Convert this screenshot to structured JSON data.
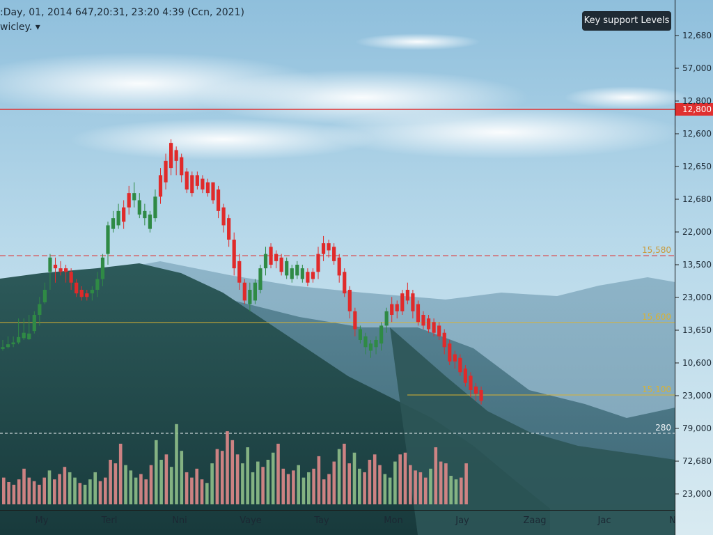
{
  "header": {
    "info_line": ":Day, 01, 2014 647,20:31, 23:20 4:39 (Ccn, 2021)",
    "symbol_line": "wicley. ▾"
  },
  "legend": {
    "label": "Key support Levels"
  },
  "colors": {
    "up": "#2f8a45",
    "down": "#e02a2a",
    "resistance": "#e03030",
    "support": "#d9b232",
    "volume_up": "#8fbf8a",
    "volume_down": "#e08a8a"
  },
  "chart_data": {
    "type": "candlestick",
    "y_axis_labels": [
      "12,680",
      "57,000",
      "12,800",
      "12,600",
      "12,650",
      "12,680",
      "22,000",
      "13,500",
      "23,000",
      "13,650",
      "10,600",
      "23,000",
      "79,000",
      "72,680",
      "23,000"
    ],
    "x_axis_labels": [
      "My",
      "Terl",
      "Nni",
      "Vaye",
      "Tay",
      "Mon",
      "Jay",
      "Zaag",
      "Jac",
      "N"
    ],
    "levels": [
      {
        "label": "12,800",
        "value": 12.8,
        "style": "solid-red",
        "price_tag": true
      },
      {
        "label": "15,580",
        "value": 15.58,
        "style": "dashed-red"
      },
      {
        "label": "15,600",
        "value": 15.6,
        "style": "solid-gold"
      },
      {
        "label": "15,100",
        "value": 15.1,
        "style": "solid-gold-partial"
      },
      {
        "label": "280",
        "value": 0.28,
        "style": "dashed-white"
      }
    ],
    "ohlc": [
      [
        0.11,
        0.115,
        0.12,
        0.14
      ],
      [
        0.116,
        0.12,
        0.128,
        0.15
      ],
      [
        0.12,
        0.128,
        0.133,
        0.15
      ],
      [
        0.128,
        0.133,
        0.148,
        0.2
      ],
      [
        0.14,
        0.145,
        0.16,
        0.2
      ],
      [
        0.14,
        0.142,
        0.158,
        0.21
      ],
      [
        0.158,
        0.165,
        0.21,
        0.22
      ],
      [
        0.18,
        0.21,
        0.24,
        0.26
      ],
      [
        0.24,
        0.245,
        0.28,
        0.3
      ],
      [
        0.28,
        0.33,
        0.37,
        0.38
      ],
      [
        0.3,
        0.34,
        0.35,
        0.37
      ],
      [
        0.32,
        0.33,
        0.34,
        0.36
      ],
      [
        0.3,
        0.33,
        0.34,
        0.35
      ],
      [
        0.28,
        0.3,
        0.33,
        0.34
      ],
      [
        0.26,
        0.27,
        0.3,
        0.31
      ],
      [
        0.25,
        0.26,
        0.28,
        0.29
      ],
      [
        0.25,
        0.26,
        0.27,
        0.28
      ],
      [
        0.25,
        0.27,
        0.28,
        0.29
      ],
      [
        0.26,
        0.28,
        0.31,
        0.33
      ],
      [
        0.29,
        0.31,
        0.37,
        0.38
      ],
      [
        0.35,
        0.38,
        0.46,
        0.47
      ],
      [
        0.44,
        0.45,
        0.48,
        0.5
      ],
      [
        0.45,
        0.46,
        0.5,
        0.52
      ],
      [
        0.45,
        0.47,
        0.51,
        0.53
      ],
      [
        0.49,
        0.51,
        0.55,
        0.57
      ],
      [
        0.51,
        0.53,
        0.55,
        0.58
      ],
      [
        0.48,
        0.49,
        0.53,
        0.55
      ],
      [
        0.46,
        0.48,
        0.5,
        0.52
      ],
      [
        0.44,
        0.45,
        0.49,
        0.5
      ],
      [
        0.47,
        0.48,
        0.54,
        0.56
      ],
      [
        0.52,
        0.54,
        0.6,
        0.62
      ],
      [
        0.56,
        0.58,
        0.64,
        0.66
      ],
      [
        0.6,
        0.62,
        0.69,
        0.7
      ],
      [
        0.6,
        0.64,
        0.67,
        0.68
      ],
      [
        0.58,
        0.6,
        0.65,
        0.66
      ],
      [
        0.55,
        0.56,
        0.61,
        0.62
      ],
      [
        0.54,
        0.55,
        0.6,
        0.61
      ],
      [
        0.56,
        0.57,
        0.6,
        0.61
      ],
      [
        0.55,
        0.56,
        0.59,
        0.6
      ],
      [
        0.54,
        0.55,
        0.58,
        0.59
      ],
      [
        0.52,
        0.53,
        0.58,
        0.58
      ],
      [
        0.48,
        0.5,
        0.56,
        0.57
      ],
      [
        0.44,
        0.46,
        0.51,
        0.52
      ],
      [
        0.4,
        0.42,
        0.48,
        0.49
      ],
      [
        0.32,
        0.34,
        0.42,
        0.44
      ],
      [
        0.28,
        0.3,
        0.36,
        0.38
      ],
      [
        0.24,
        0.25,
        0.3,
        0.31
      ],
      [
        0.22,
        0.24,
        0.28,
        0.3
      ],
      [
        0.24,
        0.25,
        0.3,
        0.31
      ],
      [
        0.27,
        0.28,
        0.34,
        0.35
      ],
      [
        0.32,
        0.34,
        0.38,
        0.4
      ],
      [
        0.34,
        0.35,
        0.4,
        0.41
      ],
      [
        0.34,
        0.36,
        0.38,
        0.39
      ],
      [
        0.32,
        0.33,
        0.37,
        0.38
      ],
      [
        0.31,
        0.32,
        0.36,
        0.37
      ],
      [
        0.3,
        0.31,
        0.34,
        0.35
      ],
      [
        0.31,
        0.32,
        0.35,
        0.36
      ],
      [
        0.3,
        0.31,
        0.34,
        0.35
      ],
      [
        0.29,
        0.3,
        0.33,
        0.34
      ],
      [
        0.3,
        0.31,
        0.33,
        0.34
      ],
      [
        0.31,
        0.33,
        0.38,
        0.4
      ],
      [
        0.36,
        0.38,
        0.41,
        0.43
      ],
      [
        0.37,
        0.39,
        0.41,
        0.42
      ],
      [
        0.35,
        0.36,
        0.4,
        0.41
      ],
      [
        0.3,
        0.32,
        0.37,
        0.38
      ],
      [
        0.26,
        0.27,
        0.33,
        0.34
      ],
      [
        0.2,
        0.22,
        0.28,
        0.29
      ],
      [
        0.15,
        0.17,
        0.22,
        0.23
      ],
      [
        0.13,
        0.14,
        0.17,
        0.18
      ],
      [
        0.1,
        0.12,
        0.15,
        0.16
      ],
      [
        0.09,
        0.11,
        0.13,
        0.14
      ],
      [
        0.1,
        0.12,
        0.14,
        0.15
      ],
      [
        0.11,
        0.13,
        0.18,
        0.19
      ],
      [
        0.16,
        0.18,
        0.22,
        0.23
      ],
      [
        0.19,
        0.21,
        0.24,
        0.26
      ],
      [
        0.2,
        0.22,
        0.24,
        0.25
      ],
      [
        0.21,
        0.22,
        0.27,
        0.28
      ],
      [
        0.24,
        0.25,
        0.28,
        0.3
      ],
      [
        0.2,
        0.22,
        0.27,
        0.28
      ],
      [
        0.18,
        0.19,
        0.24,
        0.25
      ],
      [
        0.17,
        0.18,
        0.21,
        0.22
      ],
      [
        0.16,
        0.17,
        0.2,
        0.21
      ],
      [
        0.15,
        0.16,
        0.19,
        0.2
      ],
      [
        0.14,
        0.15,
        0.18,
        0.19
      ],
      [
        0.1,
        0.12,
        0.16,
        0.17
      ],
      [
        0.07,
        0.08,
        0.13,
        0.14
      ],
      [
        0.06,
        0.08,
        0.1,
        0.11
      ],
      [
        0.04,
        0.05,
        0.09,
        0.1
      ],
      [
        0.01,
        0.02,
        0.06,
        0.07
      ],
      [
        -0.02,
        0.0,
        0.04,
        0.05
      ],
      [
        -0.03,
        -0.01,
        0.01,
        0.02
      ],
      [
        -0.04,
        -0.03,
        0.0,
        0.01
      ]
    ],
    "directions": "uuuuuuuuuuddddddduuuuuudduuuuuddddddddddddddddduuuuddduuuudddddddddduuuuuuddddddddddddddd",
    "volume": [
      0.3,
      0.25,
      0.22,
      0.28,
      0.4,
      0.3,
      0.26,
      0.22,
      0.3,
      0.38,
      0.28,
      0.34,
      0.42,
      0.36,
      0.3,
      0.24,
      0.22,
      0.28,
      0.36,
      0.26,
      0.3,
      0.5,
      0.46,
      0.68,
      0.44,
      0.38,
      0.3,
      0.34,
      0.28,
      0.44,
      0.72,
      0.5,
      0.56,
      0.42,
      0.9,
      0.6,
      0.36,
      0.3,
      0.4,
      0.28,
      0.24,
      0.46,
      0.62,
      0.6,
      0.82,
      0.72,
      0.56,
      0.46,
      0.64,
      0.36,
      0.48,
      0.42,
      0.5,
      0.58,
      0.68,
      0.4,
      0.34,
      0.38,
      0.44,
      0.3,
      0.36,
      0.4,
      0.54,
      0.28,
      0.34,
      0.48,
      0.62,
      0.68,
      0.46,
      0.58,
      0.4,
      0.36,
      0.5,
      0.56,
      0.44,
      0.34,
      0.3,
      0.48,
      0.56,
      0.58,
      0.44,
      0.38,
      0.36,
      0.3,
      0.4,
      0.64,
      0.48,
      0.46,
      0.32,
      0.28,
      0.3,
      0.46
    ],
    "volume_directions": "ddddddddduddduuduuuddddduuuddduuduuudddduuddddduuuuduudddduuudddddudduudddduuudddddduddduud"
  }
}
